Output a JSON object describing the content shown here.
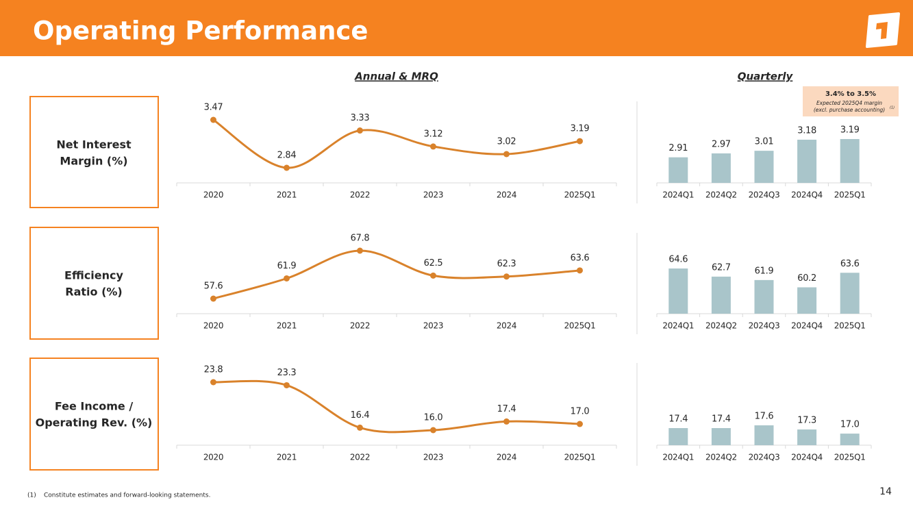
{
  "header": {
    "title": "Operating Performance"
  },
  "column_titles": [
    "Annual & MRQ",
    "Quarterly"
  ],
  "row_labels": [
    [
      "Net Interest",
      "Margin (%)"
    ],
    [
      "Efficiency",
      "Ratio (%)"
    ],
    [
      "Fee Income /",
      "Operating Rev. (%)"
    ]
  ],
  "chart_data": [
    {
      "type": "line",
      "categories": [
        "2020",
        "2021",
        "2022",
        "2023",
        "2024",
        "2025Q1"
      ],
      "values": [
        3.47,
        2.84,
        3.33,
        3.12,
        3.02,
        3.19
      ],
      "color": "#d9822b"
    },
    {
      "type": "bar",
      "categories": [
        "2024Q1",
        "2024Q2",
        "2024Q3",
        "2024Q4",
        "2025Q1"
      ],
      "values": [
        2.91,
        2.97,
        3.01,
        3.18,
        3.19
      ],
      "color": "#a9c5ca",
      "annotation": {
        "title": "3.4% to 3.5%",
        "lines": [
          "Expected 2025Q4 margin",
          "(excl. purchase accounting)"
        ],
        "note": "(1)"
      }
    },
    {
      "type": "line",
      "categories": [
        "2020",
        "2021",
        "2022",
        "2023",
        "2024",
        "2025Q1"
      ],
      "values": [
        57.6,
        61.9,
        67.8,
        62.5,
        62.3,
        63.6
      ],
      "color": "#d9822b"
    },
    {
      "type": "bar",
      "categories": [
        "2024Q1",
        "2024Q2",
        "2024Q3",
        "2024Q4",
        "2025Q1"
      ],
      "values": [
        64.6,
        62.7,
        61.9,
        60.2,
        63.6
      ],
      "color": "#a9c5ca"
    },
    {
      "type": "line",
      "categories": [
        "2020",
        "2021",
        "2022",
        "2023",
        "2024",
        "2025Q1"
      ],
      "values": [
        23.8,
        23.3,
        16.4,
        16.0,
        17.4,
        17.0
      ],
      "value_labels": [
        "23.8",
        "23.3",
        "16.4",
        "16.0",
        "17.4",
        "17.0"
      ],
      "color": "#d9822b"
    },
    {
      "type": "bar",
      "categories": [
        "2024Q1",
        "2024Q2",
        "2024Q3",
        "2024Q4",
        "2025Q1"
      ],
      "values": [
        17.4,
        17.4,
        17.6,
        17.3,
        17.0
      ],
      "value_labels": [
        "17.4",
        "17.4",
        "17.6",
        "17.3",
        "17.0"
      ],
      "color": "#a9c5ca"
    }
  ],
  "footnote": {
    "marker": "(1)",
    "text": "Constitute estimates and forward-looking statements."
  },
  "page_number": "14"
}
